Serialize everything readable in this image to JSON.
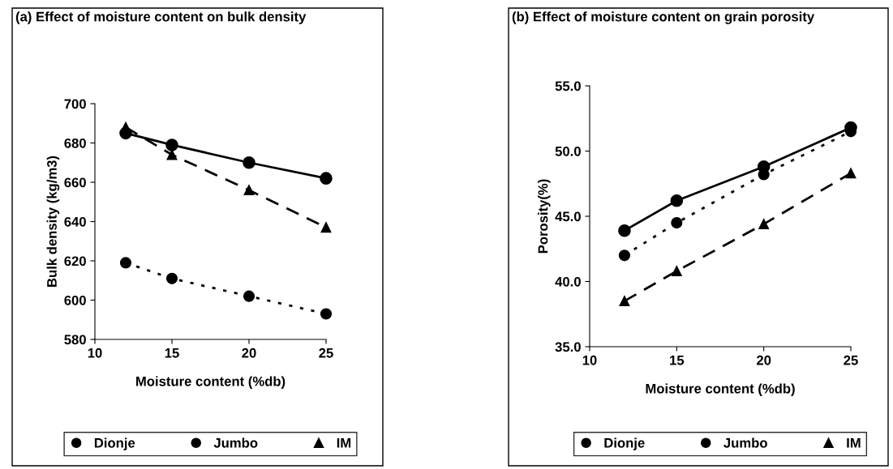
{
  "chart_data": [
    {
      "type": "line",
      "title": "(a) Effect of moisture content on bulk density",
      "xlabel": "Moisture content (%db)",
      "ylabel": "Bulk density (kg/m3)",
      "x": [
        12,
        15,
        20,
        25
      ],
      "xlim": [
        10,
        25
      ],
      "xticks": [
        10,
        15,
        20,
        25
      ],
      "ylim": [
        580,
        700
      ],
      "yticks": [
        580,
        600,
        620,
        640,
        660,
        680,
        700
      ],
      "grid": false,
      "legend": "bottom",
      "series": [
        {
          "name": "Dionje",
          "color": "#000000",
          "marker": "circle",
          "line_style": "solid",
          "values": [
            685,
            679,
            670,
            662
          ]
        },
        {
          "name": "Jumbo",
          "color": "#000000",
          "marker": "circle",
          "line_style": "dotted",
          "values": [
            619,
            611,
            602,
            593
          ]
        },
        {
          "name": "IM",
          "color": "#000000",
          "marker": "triangle",
          "line_style": "dashed",
          "values": [
            688,
            674,
            656,
            637
          ]
        }
      ]
    },
    {
      "type": "line",
      "title": "(b) Effect of moisture content on grain porosity",
      "xlabel": "Moisture content (%db)",
      "ylabel": "Porosity(%)",
      "x": [
        12,
        15,
        20,
        25
      ],
      "xlim": [
        10,
        25
      ],
      "xticks": [
        10,
        15,
        20,
        25
      ],
      "ylim": [
        35,
        55
      ],
      "yticks": [
        {
          "value": 35,
          "label": "35.0"
        },
        {
          "value": 40,
          "label": "40.0"
        },
        {
          "value": 45,
          "label": "45.0"
        },
        {
          "value": 50,
          "label": "50.0"
        },
        {
          "value": 55,
          "label": "55.0"
        }
      ],
      "grid": false,
      "legend": "bottom",
      "series": [
        {
          "name": "Dionje",
          "color": "#000000",
          "marker": "circle",
          "line_style": "solid",
          "values": [
            43.9,
            46.2,
            48.8,
            51.8
          ]
        },
        {
          "name": "Jumbo",
          "color": "#000000",
          "marker": "circle",
          "line_style": "dotted",
          "values": [
            42.0,
            44.5,
            48.2,
            51.5
          ]
        },
        {
          "name": "IM",
          "color": "#000000",
          "marker": "triangle",
          "line_style": "dashed",
          "values": [
            38.5,
            40.8,
            44.4,
            48.3
          ]
        }
      ]
    }
  ]
}
